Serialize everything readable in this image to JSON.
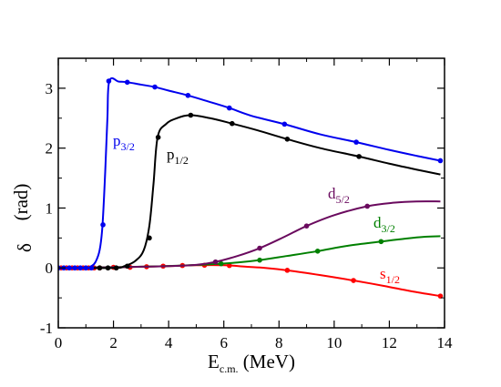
{
  "chart_data": {
    "type": "line",
    "xlabel": {
      "main": "E",
      "sub": "c.m.",
      "rest": " (MeV)"
    },
    "ylabel": {
      "main": "δ",
      "rest": "(rad)"
    },
    "xlim": [
      0,
      14
    ],
    "ylim": [
      -1,
      3.5
    ],
    "xticks": [
      0,
      2,
      4,
      6,
      8,
      10,
      12,
      14
    ],
    "yticks": [
      -1,
      0,
      1,
      2,
      3
    ],
    "grid": false,
    "series": [
      {
        "name": "p3/2",
        "label_main": "p",
        "label_sub": "3/2",
        "color": "#0000ee",
        "curve": [
          [
            0,
            0
          ],
          [
            1.0,
            0
          ],
          [
            1.2,
            0.03
          ],
          [
            1.35,
            0.1
          ],
          [
            1.5,
            0.3
          ],
          [
            1.6,
            0.7
          ],
          [
            1.7,
            1.6
          ],
          [
            1.78,
            2.5
          ],
          [
            1.85,
            3.12
          ],
          [
            2.2,
            3.11
          ],
          [
            2.5,
            3.1
          ],
          [
            3.0,
            3.06
          ],
          [
            3.5,
            3.02
          ],
          [
            4.0,
            2.96
          ],
          [
            4.7,
            2.88
          ],
          [
            5.5,
            2.77
          ],
          [
            6.2,
            2.67
          ],
          [
            7.0,
            2.54
          ],
          [
            8.2,
            2.4
          ],
          [
            9.5,
            2.23
          ],
          [
            10.8,
            2.1
          ],
          [
            12.0,
            1.97
          ],
          [
            13.0,
            1.87
          ],
          [
            13.85,
            1.79
          ]
        ],
        "points": [
          [
            0,
            0
          ],
          [
            0.2,
            0
          ],
          [
            0.4,
            0
          ],
          [
            0.6,
            0
          ],
          [
            0.8,
            0
          ],
          [
            1.0,
            0
          ],
          [
            1.2,
            0
          ],
          [
            1.62,
            0.72
          ],
          [
            1.83,
            3.12
          ],
          [
            2.5,
            3.1
          ],
          [
            3.5,
            3.02
          ],
          [
            4.7,
            2.88
          ],
          [
            6.2,
            2.67
          ],
          [
            8.2,
            2.4
          ],
          [
            10.8,
            2.1
          ],
          [
            13.85,
            1.79
          ]
        ]
      },
      {
        "name": "p1/2",
        "label_main": "p",
        "label_sub": "1/2",
        "color": "#000000",
        "curve": [
          [
            0,
            0
          ],
          [
            2.0,
            0
          ],
          [
            2.4,
            0.03
          ],
          [
            2.8,
            0.12
          ],
          [
            3.1,
            0.3
          ],
          [
            3.3,
            0.7
          ],
          [
            3.45,
            1.4
          ],
          [
            3.6,
            2.18
          ],
          [
            3.9,
            2.4
          ],
          [
            4.3,
            2.5
          ],
          [
            4.8,
            2.55
          ],
          [
            5.5,
            2.5
          ],
          [
            6.3,
            2.41
          ],
          [
            7.2,
            2.3
          ],
          [
            8.3,
            2.15
          ],
          [
            9.5,
            2.0
          ],
          [
            10.9,
            1.86
          ],
          [
            12.0,
            1.74
          ],
          [
            13.0,
            1.64
          ],
          [
            13.85,
            1.56
          ]
        ],
        "points": [
          [
            1.5,
            0
          ],
          [
            1.8,
            0
          ],
          [
            2.1,
            0
          ],
          [
            2.5,
            0.03
          ],
          [
            3.3,
            0.5
          ],
          [
            3.62,
            2.18
          ],
          [
            4.8,
            2.55
          ],
          [
            6.3,
            2.41
          ],
          [
            8.3,
            2.15
          ],
          [
            10.9,
            1.86
          ]
        ]
      },
      {
        "name": "d5/2",
        "label_main": "d",
        "label_sub": "5/2",
        "color": "#6a0a5e",
        "curve": [
          [
            0,
            0
          ],
          [
            2.0,
            0.01
          ],
          [
            3.0,
            0.02
          ],
          [
            4.0,
            0.03
          ],
          [
            5.0,
            0.05
          ],
          [
            5.7,
            0.1
          ],
          [
            6.5,
            0.2
          ],
          [
            7.3,
            0.33
          ],
          [
            8.2,
            0.52
          ],
          [
            9.0,
            0.7
          ],
          [
            10.0,
            0.88
          ],
          [
            11.2,
            1.03
          ],
          [
            12.2,
            1.09
          ],
          [
            13.0,
            1.11
          ],
          [
            13.85,
            1.11
          ]
        ],
        "points": [
          [
            5.7,
            0.1
          ],
          [
            7.3,
            0.33
          ],
          [
            9.0,
            0.7
          ],
          [
            11.2,
            1.03
          ]
        ]
      },
      {
        "name": "d3/2",
        "label_main": "d",
        "label_sub": "3/2",
        "color": "#008000",
        "curve": [
          [
            0,
            0
          ],
          [
            3.0,
            0.02
          ],
          [
            4.5,
            0.04
          ],
          [
            5.5,
            0.06
          ],
          [
            6.5,
            0.09
          ],
          [
            7.3,
            0.13
          ],
          [
            8.3,
            0.2
          ],
          [
            9.4,
            0.28
          ],
          [
            10.5,
            0.37
          ],
          [
            11.7,
            0.44
          ],
          [
            12.6,
            0.49
          ],
          [
            13.3,
            0.52
          ],
          [
            13.85,
            0.53
          ]
        ],
        "points": [
          [
            5.9,
            0.07
          ],
          [
            7.3,
            0.13
          ],
          [
            9.4,
            0.28
          ],
          [
            11.7,
            0.44
          ]
        ]
      },
      {
        "name": "s1/2",
        "label_main": "s",
        "label_sub": "1/2",
        "color": "#ff0000",
        "curve": [
          [
            0,
            0
          ],
          [
            2.0,
            0.01
          ],
          [
            4.0,
            0.03
          ],
          [
            5.0,
            0.045
          ],
          [
            6.0,
            0.045
          ],
          [
            6.8,
            0.02
          ],
          [
            7.5,
            0.0
          ],
          [
            8.3,
            -0.04
          ],
          [
            9.5,
            -0.12
          ],
          [
            10.7,
            -0.21
          ],
          [
            11.8,
            -0.3
          ],
          [
            12.8,
            -0.39
          ],
          [
            13.85,
            -0.47
          ]
        ],
        "points": [
          [
            0.1,
            0
          ],
          [
            0.3,
            0
          ],
          [
            0.5,
            0
          ],
          [
            0.7,
            0
          ],
          [
            0.9,
            0
          ],
          [
            1.1,
            0
          ],
          [
            1.3,
            0
          ],
          [
            1.5,
            0
          ],
          [
            2.0,
            0.01
          ],
          [
            2.6,
            0.01
          ],
          [
            3.2,
            0.02
          ],
          [
            3.8,
            0.03
          ],
          [
            4.5,
            0.04
          ],
          [
            5.3,
            0.045
          ],
          [
            6.2,
            0.04
          ],
          [
            8.3,
            -0.04
          ],
          [
            10.7,
            -0.21
          ],
          [
            13.85,
            -0.47
          ]
        ]
      }
    ]
  }
}
